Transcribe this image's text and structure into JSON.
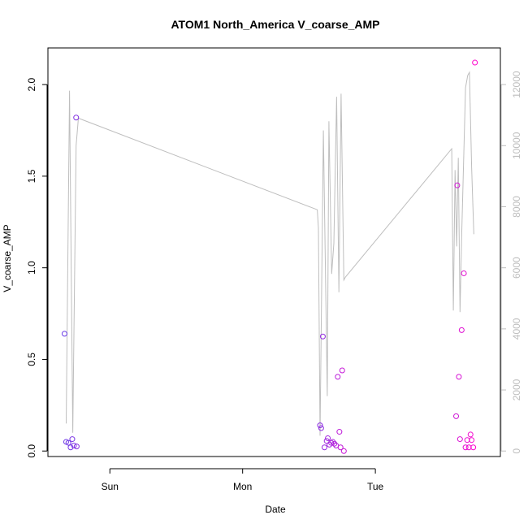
{
  "chart_data": {
    "type": "scatter",
    "title": "ATOM1 North_America V_coarse_AMP",
    "xlabel": "Date",
    "ylabel": "V_coarse_AMP",
    "x_ticks": [
      "Sun",
      "Mon",
      "Tue"
    ],
    "x_tick_values_hours": [
      0,
      24,
      48
    ],
    "xlim_hours": [
      -11.2,
      70.6
    ],
    "ylim": [
      -0.03,
      2.2
    ],
    "y_ticks": [
      "0.0",
      "0.5",
      "1.0",
      "1.5",
      "2.0"
    ],
    "y_tick_values": [
      0,
      0.5,
      1,
      1.5,
      2
    ],
    "y2_ticks": [
      "0",
      "2000",
      "4000",
      "6000",
      "8000",
      "10000",
      "12000"
    ],
    "y2_tick_values": [
      0,
      2000,
      4000,
      6000,
      8000,
      10000,
      12000
    ],
    "y2lim": [
      -180,
      13200
    ],
    "grid": false,
    "legend": "none",
    "colors": {
      "points_start": "#6a3be8",
      "points_end": "#ff00cc",
      "line": "#bebebe",
      "axis": "#000000",
      "right_axis": "#bebebe"
    },
    "series": [
      {
        "type": "scatter",
        "axis": "left",
        "x": [
          -8.2,
          -7.9,
          -7.5,
          -7.1,
          -6.8,
          -6.5,
          -6.1,
          -6.0,
          38.0,
          38.2,
          38.5,
          38.8,
          39.2,
          39.4,
          39.7,
          40.0,
          40.3,
          40.6,
          40.9,
          41.2,
          41.5,
          41.7,
          42.0,
          42.3,
          62.6,
          62.8,
          63.1,
          63.3,
          63.6,
          64.0,
          64.3,
          64.6,
          64.9,
          65.2,
          65.4,
          65.7,
          66.0
        ],
        "y": [
          0.64,
          0.05,
          0.045,
          0.02,
          0.065,
          0.03,
          1.82,
          0.025,
          0.14,
          0.125,
          0.625,
          0.02,
          0.055,
          0.07,
          0.035,
          0.045,
          0.05,
          0.04,
          0.03,
          0.405,
          0.105,
          0.02,
          0.44,
          0.0,
          0.19,
          1.45,
          0.405,
          0.065,
          0.66,
          0.97,
          0.02,
          0.06,
          0.02,
          0.09,
          0.06,
          0.02,
          2.12
        ]
      },
      {
        "type": "line",
        "axis": "right",
        "x": [
          -7.9,
          -7.3,
          -6.7,
          -6.1,
          -5.7,
          37.5,
          37.7,
          38.0,
          38.6,
          39.3,
          39.6,
          40.1,
          40.5,
          41.0,
          41.4,
          41.8,
          42.3,
          42.6,
          61.8,
          62.1,
          62.4,
          62.7,
          63.0,
          63.3,
          63.6,
          64.3,
          64.7,
          65.0,
          65.4,
          65.8
        ],
        "y": [
          900,
          11800,
          600,
          10000,
          10900,
          7900,
          7300,
          500,
          10500,
          1800,
          10800,
          5800,
          6800,
          11600,
          5200,
          11700,
          5600,
          5700,
          9900,
          4600,
          9200,
          6700,
          9600,
          4550,
          7000,
          11900,
          12300,
          12400,
          9300,
          7100
        ]
      }
    ]
  }
}
